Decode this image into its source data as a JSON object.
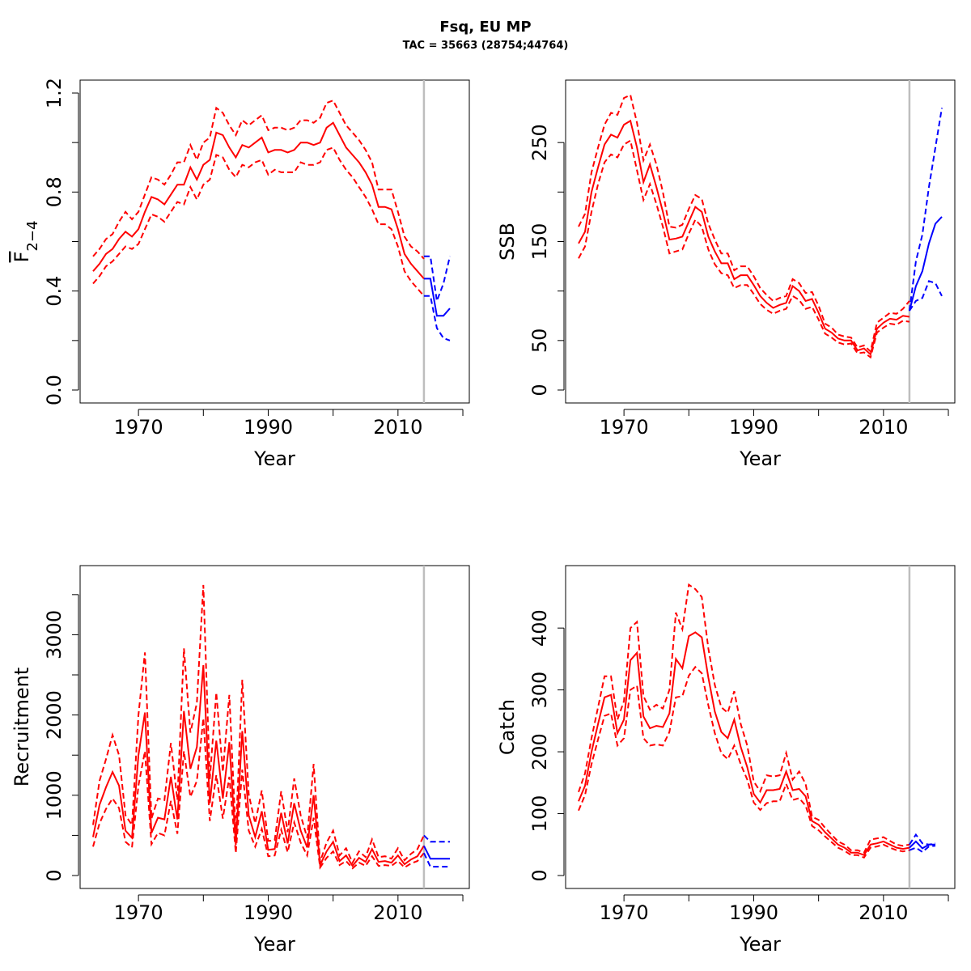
{
  "figure": {
    "title": "Fsq, EU MP",
    "subtitle": "TAC = 35663 (28754;44764)"
  },
  "colors": {
    "historic": "#ff0000",
    "projection": "#0000ff",
    "divider": "#bebebe"
  },
  "chart_data": [
    {
      "type": "line",
      "ylabel": "F",
      "ylabel_sub": "2−4",
      "xlabel": "Year",
      "x_ticks": [
        1970,
        1990,
        2010
      ],
      "y_ticks": [
        "0.0",
        "0.4",
        "0.8",
        "1.2"
      ],
      "ylim": [
        0,
        1.2
      ],
      "xlim": [
        1963,
        2019
      ],
      "divider_year": 2014,
      "historic": {
        "x": [
          1963,
          1964,
          1965,
          1966,
          1967,
          1968,
          1969,
          1970,
          1971,
          1972,
          1973,
          1974,
          1975,
          1976,
          1977,
          1978,
          1979,
          1980,
          1981,
          1982,
          1983,
          1984,
          1985,
          1986,
          1987,
          1988,
          1989,
          1990,
          1991,
          1992,
          1993,
          1994,
          1995,
          1996,
          1997,
          1998,
          1999,
          2000,
          2001,
          2002,
          2003,
          2004,
          2005,
          2006,
          2007,
          2008,
          2009,
          2010,
          2011,
          2012,
          2013,
          2014
        ],
        "mid": [
          0.48,
          0.51,
          0.55,
          0.57,
          0.61,
          0.64,
          0.62,
          0.65,
          0.72,
          0.78,
          0.77,
          0.75,
          0.79,
          0.83,
          0.83,
          0.9,
          0.85,
          0.91,
          0.93,
          1.04,
          1.03,
          0.98,
          0.94,
          0.99,
          0.98,
          1.0,
          1.02,
          0.96,
          0.97,
          0.97,
          0.96,
          0.97,
          1.0,
          1.0,
          0.99,
          1.0,
          1.06,
          1.08,
          1.03,
          0.98,
          0.95,
          0.92,
          0.88,
          0.83,
          0.74,
          0.74,
          0.73,
          0.65,
          0.55,
          0.51,
          0.48,
          0.45
        ],
        "low": [
          0.43,
          0.46,
          0.5,
          0.52,
          0.55,
          0.58,
          0.57,
          0.59,
          0.65,
          0.71,
          0.7,
          0.68,
          0.72,
          0.76,
          0.75,
          0.82,
          0.77,
          0.83,
          0.85,
          0.95,
          0.94,
          0.89,
          0.86,
          0.91,
          0.9,
          0.92,
          0.93,
          0.87,
          0.89,
          0.88,
          0.88,
          0.88,
          0.92,
          0.91,
          0.91,
          0.92,
          0.97,
          0.98,
          0.93,
          0.89,
          0.86,
          0.82,
          0.78,
          0.73,
          0.67,
          0.67,
          0.65,
          0.58,
          0.48,
          0.44,
          0.41,
          0.38
        ],
        "high": [
          0.54,
          0.57,
          0.61,
          0.63,
          0.68,
          0.72,
          0.69,
          0.72,
          0.79,
          0.86,
          0.85,
          0.83,
          0.87,
          0.92,
          0.92,
          0.99,
          0.93,
          1.0,
          1.02,
          1.14,
          1.12,
          1.07,
          1.03,
          1.09,
          1.07,
          1.09,
          1.11,
          1.05,
          1.06,
          1.06,
          1.05,
          1.06,
          1.09,
          1.09,
          1.08,
          1.1,
          1.16,
          1.17,
          1.12,
          1.07,
          1.04,
          1.01,
          0.97,
          0.92,
          0.81,
          0.81,
          0.81,
          0.72,
          0.62,
          0.58,
          0.56,
          0.53
        ]
      },
      "projection": {
        "x": [
          2014,
          2015,
          2016,
          2017,
          2018
        ],
        "mid": [
          0.45,
          0.45,
          0.3,
          0.3,
          0.33
        ],
        "low": [
          0.38,
          0.38,
          0.25,
          0.21,
          0.2
        ],
        "high": [
          0.54,
          0.54,
          0.36,
          0.43,
          0.54
        ]
      }
    },
    {
      "type": "line",
      "ylabel": "SSB",
      "xlabel": "Year",
      "x_ticks": [
        1970,
        1990,
        2010
      ],
      "y_ticks": [
        "0",
        "50",
        "150",
        "250"
      ],
      "y_tick_values": [
        0,
        50,
        150,
        250
      ],
      "y_minor_ticks": [
        100,
        200
      ],
      "ylim": [
        0,
        300
      ],
      "xlim": [
        1963,
        2019
      ],
      "divider_year": 2014,
      "historic": {
        "x": [
          1963,
          1964,
          1965,
          1966,
          1967,
          1968,
          1969,
          1970,
          1971,
          1972,
          1973,
          1974,
          1975,
          1976,
          1977,
          1978,
          1979,
          1980,
          1981,
          1982,
          1983,
          1984,
          1985,
          1986,
          1987,
          1988,
          1989,
          1990,
          1991,
          1992,
          1993,
          1994,
          1995,
          1996,
          1997,
          1998,
          1999,
          2000,
          2001,
          2002,
          2003,
          2004,
          2005,
          2006,
          2007,
          2008,
          2009,
          2010,
          2011,
          2012,
          2013,
          2014
        ],
        "mid": [
          148,
          160,
          200,
          225,
          248,
          258,
          255,
          268,
          272,
          245,
          210,
          228,
          205,
          180,
          152,
          153,
          155,
          170,
          185,
          180,
          155,
          140,
          128,
          128,
          112,
          116,
          116,
          106,
          95,
          88,
          83,
          86,
          88,
          105,
          100,
          90,
          92,
          78,
          62,
          58,
          52,
          50,
          50,
          40,
          42,
          36,
          62,
          68,
          72,
          71,
          75,
          74
        ],
        "low": [
          133,
          145,
          180,
          208,
          230,
          238,
          235,
          248,
          252,
          222,
          192,
          208,
          188,
          165,
          138,
          140,
          142,
          158,
          172,
          165,
          142,
          127,
          118,
          116,
          103,
          106,
          106,
          97,
          87,
          81,
          77,
          80,
          82,
          95,
          91,
          82,
          84,
          71,
          57,
          53,
          48,
          46,
          47,
          37,
          38,
          33,
          58,
          63,
          67,
          66,
          70,
          69
        ],
        "high": [
          165,
          178,
          220,
          245,
          268,
          280,
          278,
          295,
          298,
          270,
          232,
          248,
          228,
          200,
          165,
          164,
          167,
          183,
          197,
          193,
          168,
          152,
          138,
          138,
          121,
          125,
          125,
          115,
          103,
          96,
          90,
          93,
          95,
          112,
          108,
          98,
          99,
          85,
          67,
          63,
          56,
          54,
          53,
          43,
          45,
          39,
          68,
          73,
          78,
          77,
          82,
          90
        ]
      },
      "projection": {
        "x": [
          2014,
          2015,
          2016,
          2017,
          2018,
          2019
        ],
        "mid": [
          80,
          105,
          120,
          148,
          168,
          175
        ],
        "low": [
          80,
          90,
          93,
          110,
          108,
          95
        ],
        "high": [
          80,
          130,
          157,
          205,
          245,
          285
        ]
      }
    },
    {
      "type": "line",
      "ylabel": "Recruitment",
      "xlabel": "Year",
      "x_ticks": [
        1970,
        1990,
        2010
      ],
      "y_ticks": [
        "0",
        "1000",
        "2000",
        "3000"
      ],
      "y_tick_values": [
        0,
        1000,
        2000,
        3000
      ],
      "y_minor_ticks": [
        500,
        1500,
        2500,
        3500
      ],
      "ylim": [
        0,
        3700
      ],
      "xlim": [
        1963,
        2019
      ],
      "divider_year": 2014,
      "historic": {
        "x": [
          1963,
          1964,
          1965,
          1966,
          1967,
          1968,
          1969,
          1970,
          1971,
          1972,
          1973,
          1974,
          1975,
          1976,
          1977,
          1978,
          1979,
          1980,
          1981,
          1982,
          1983,
          1984,
          1985,
          1986,
          1987,
          1988,
          1989,
          1990,
          1991,
          1992,
          1993,
          1994,
          1995,
          1996,
          1997,
          1998,
          1999,
          2000,
          2001,
          2002,
          2003,
          2004,
          2005,
          2006,
          2007,
          2008,
          2009,
          2010,
          2011,
          2012,
          2013,
          2014
        ],
        "mid": [
          480,
          880,
          1100,
          1290,
          1120,
          560,
          470,
          1500,
          2030,
          530,
          720,
          700,
          1230,
          700,
          2050,
          1330,
          1600,
          2620,
          900,
          1680,
          960,
          1660,
          380,
          1800,
          750,
          480,
          800,
          320,
          330,
          780,
          400,
          900,
          560,
          350,
          1000,
          130,
          300,
          420,
          180,
          250,
          120,
          220,
          170,
          330,
          170,
          180,
          160,
          250,
          140,
          200,
          240,
          370
        ],
        "low": [
          360,
          650,
          830,
          960,
          840,
          420,
          350,
          1120,
          1550,
          390,
          530,
          500,
          930,
          520,
          1550,
          980,
          1180,
          1960,
          680,
          1250,
          710,
          1230,
          280,
          1320,
          560,
          360,
          580,
          240,
          250,
          570,
          290,
          660,
          410,
          250,
          720,
          100,
          220,
          300,
          130,
          180,
          90,
          160,
          120,
          240,
          120,
          130,
          120,
          180,
          100,
          150,
          180,
          280
        ],
        "high": [
          630,
          1180,
          1450,
          1750,
          1500,
          750,
          630,
          2000,
          2780,
          710,
          960,
          940,
          1650,
          940,
          2830,
          1780,
          2150,
          3620,
          1200,
          2280,
          1290,
          2250,
          510,
          2440,
          1010,
          650,
          1060,
          430,
          440,
          1050,
          540,
          1210,
          750,
          470,
          1390,
          170,
          410,
          560,
          250,
          340,
          160,
          300,
          230,
          450,
          230,
          240,
          210,
          340,
          190,
          270,
          330,
          500
        ]
      },
      "projection": {
        "x": [
          2014,
          2015,
          2016,
          2017,
          2018
        ],
        "mid": [
          370,
          210,
          210,
          210,
          210
        ],
        "low": [
          280,
          110,
          110,
          110,
          110
        ],
        "high": [
          500,
          420,
          420,
          420,
          420
        ]
      }
    },
    {
      "type": "line",
      "ylabel": "Catch",
      "xlabel": "Year",
      "x_ticks": [
        1970,
        1990,
        2010
      ],
      "y_ticks": [
        "0",
        "100",
        "200",
        "300",
        "400"
      ],
      "y_tick_values": [
        0,
        100,
        200,
        300,
        400
      ],
      "ylim": [
        0,
        480
      ],
      "xlim": [
        1963,
        2019
      ],
      "divider_year": 2014,
      "historic": {
        "x": [
          1963,
          1964,
          1965,
          1966,
          1967,
          1968,
          1969,
          1970,
          1971,
          1972,
          1973,
          1974,
          1975,
          1976,
          1977,
          1978,
          1979,
          1980,
          1981,
          1982,
          1983,
          1984,
          1985,
          1986,
          1987,
          1988,
          1989,
          1990,
          1991,
          1992,
          1993,
          1994,
          1995,
          1996,
          1997,
          1998,
          1999,
          2000,
          2001,
          2002,
          2003,
          2004,
          2005,
          2006,
          2007,
          2008,
          2009,
          2010,
          2011,
          2012,
          2013,
          2014
        ],
        "mid": [
          120,
          145,
          200,
          245,
          288,
          292,
          230,
          252,
          348,
          360,
          257,
          238,
          242,
          240,
          262,
          350,
          335,
          387,
          393,
          385,
          320,
          265,
          232,
          222,
          252,
          208,
          175,
          132,
          118,
          138,
          138,
          140,
          168,
          138,
          140,
          128,
          88,
          82,
          70,
          60,
          50,
          45,
          37,
          37,
          33,
          50,
          52,
          55,
          50,
          45,
          43,
          45
        ],
        "low": [
          105,
          130,
          180,
          220,
          258,
          262,
          210,
          222,
          300,
          307,
          222,
          210,
          212,
          210,
          232,
          288,
          290,
          323,
          337,
          327,
          275,
          230,
          198,
          188,
          210,
          180,
          155,
          118,
          106,
          117,
          120,
          120,
          148,
          122,
          125,
          113,
          80,
          73,
          63,
          54,
          45,
          40,
          33,
          33,
          29,
          45,
          47,
          50,
          45,
          41,
          39,
          41
        ],
        "high": [
          135,
          165,
          222,
          272,
          322,
          322,
          252,
          282,
          400,
          410,
          290,
          268,
          276,
          270,
          300,
          425,
          398,
          470,
          463,
          450,
          367,
          308,
          272,
          263,
          298,
          245,
          210,
          152,
          136,
          162,
          160,
          162,
          198,
          155,
          168,
          148,
          95,
          90,
          77,
          66,
          55,
          50,
          41,
          41,
          37,
          58,
          60,
          62,
          56,
          50,
          48,
          50
        ]
      },
      "projection": {
        "x": [
          2014,
          2015,
          2016,
          2017,
          2018
        ],
        "mid": [
          45,
          55,
          44,
          50,
          50
        ],
        "low": [
          41,
          45,
          38,
          47,
          48
        ],
        "high": [
          50,
          66,
          52,
          50,
          52
        ]
      }
    }
  ]
}
